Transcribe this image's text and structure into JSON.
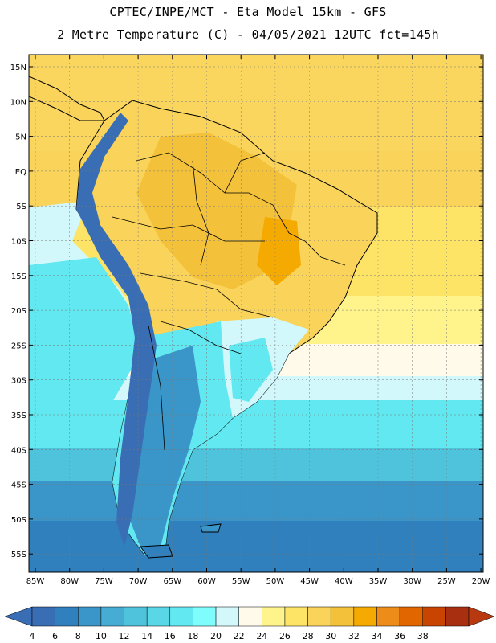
{
  "header": {
    "line1": "CPTEC/INPE/MCT -  Eta Model 15km - GFS",
    "line2": "2 Metre Temperature (C) - 04/05/2021 12UTC fct=145h"
  },
  "lat_labels": [
    "15N",
    "10N",
    "5N",
    "EQ",
    "5S",
    "10S",
    "15S",
    "20S",
    "25S",
    "30S",
    "35S",
    "40S",
    "45S",
    "50S",
    "55S"
  ],
  "lon_labels": [
    "85W",
    "80W",
    "75W",
    "70W",
    "65W",
    "60W",
    "55W",
    "50W",
    "45W",
    "40W",
    "35W",
    "30W",
    "25W",
    "20W"
  ],
  "colorbar": {
    "labels": [
      "4",
      "6",
      "8",
      "10",
      "12",
      "14",
      "16",
      "18",
      "20",
      "22",
      "24",
      "26",
      "28",
      "30",
      "32",
      "34",
      "36",
      "38"
    ],
    "colors": [
      "#3a6eb4",
      "#2f80bd",
      "#3a96c8",
      "#46acd4",
      "#4fc3dc",
      "#5ad7e6",
      "#62e8f0",
      "#7ffcfc",
      "#d2f8fc",
      "#fffaea",
      "#fff48c",
      "#fde466",
      "#fad45a",
      "#f4c23a",
      "#f4aa00",
      "#ee8c1a",
      "#e26600",
      "#c84400",
      "#a83010"
    ],
    "under_color": "#3a6eb4",
    "over_color": "#b83810"
  },
  "legend_colors": {
    "ocean_north": "#fbd65e",
    "ocean_band_1": "#fde466",
    "ocean_band_2": "#fff48c",
    "ocean_mid": "#62e8f0",
    "ocean_south_1": "#4fc3dc",
    "ocean_south_2": "#3a96c8",
    "ocean_south_3": "#2f80bd",
    "land_hot": "#f4c23a",
    "land_warm": "#fad45a",
    "land_mild": "#fff48c",
    "andes": "#3a6eb4",
    "patagonia": "#3a96c8"
  }
}
